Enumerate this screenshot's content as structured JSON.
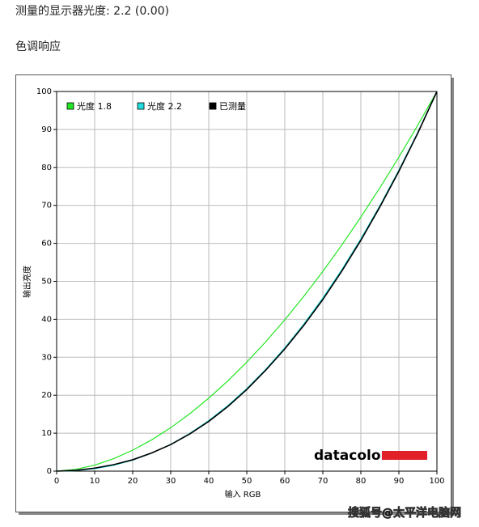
{
  "page": {
    "measured_gamma": "测量的显示器光度: 2.2 (0.00)",
    "section_title": "色调响应",
    "logo": "datacolor",
    "watermark": "搜狐号@太平洋电脑网"
  },
  "chart_data": {
    "type": "line",
    "x_label": "输入 RGB",
    "y_label": "输出亮度",
    "x": [
      0,
      5,
      10,
      15,
      20,
      25,
      30,
      35,
      40,
      45,
      50,
      55,
      60,
      65,
      70,
      75,
      80,
      85,
      90,
      95,
      100
    ],
    "series": [
      {
        "name": "光度 1.8",
        "color": "#22e622",
        "values": [
          0,
          0.46,
          1.58,
          3.29,
          5.52,
          8.25,
          11.45,
          15.11,
          19.22,
          23.76,
          28.72,
          34.09,
          39.87,
          46.05,
          52.62,
          59.58,
          66.92,
          74.64,
          82.72,
          91.18,
          100
        ]
      },
      {
        "name": "光度 2.2",
        "color": "#22dddd",
        "values": [
          0,
          0.14,
          0.63,
          1.54,
          2.9,
          4.74,
          7.07,
          9.93,
          13.32,
          17.26,
          21.76,
          26.84,
          32.5,
          38.76,
          45.63,
          53.11,
          61.21,
          69.94,
          79.31,
          89.33,
          100
        ]
      },
      {
        "name": "已测量",
        "color": "#000000",
        "values": [
          0,
          0.2,
          0.8,
          1.7,
          3.0,
          4.8,
          7.0,
          9.8,
          13.1,
          17.0,
          21.5,
          26.6,
          32.2,
          38.4,
          45.2,
          52.7,
          60.8,
          69.6,
          79.0,
          89.1,
          100
        ]
      }
    ],
    "xlim": [
      0,
      100
    ],
    "ylim": [
      0,
      100
    ],
    "xticks": [
      0,
      10,
      20,
      30,
      40,
      50,
      60,
      70,
      80,
      90,
      100
    ],
    "yticks": [
      0,
      10,
      20,
      30,
      40,
      50,
      60,
      70,
      80,
      90,
      100
    ],
    "grid": true,
    "legend": "top-left"
  }
}
